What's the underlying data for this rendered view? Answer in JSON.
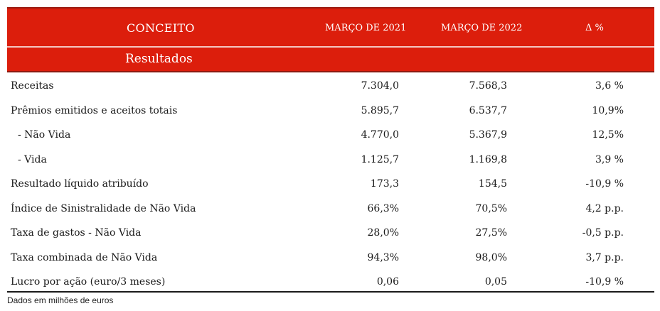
{
  "header": {
    "concept": "CONCEITO",
    "col_2021": "MARÇO DE 2021",
    "col_2022": "MARÇO DE 2022",
    "col_delta": "Δ %"
  },
  "section": {
    "title": "Resultados"
  },
  "rows": [
    {
      "label": "Receitas",
      "v2021": "7.304,0",
      "v2022": "7.568,3",
      "delta": "3,6 %"
    },
    {
      "label": "Prêmios emitidos e aceitos totais",
      "v2021": "5.895,7",
      "v2022": "6.537,7",
      "delta": "10,9%"
    },
    {
      "label": "- Não Vida",
      "v2021": "4.770,0",
      "v2022": "5.367,9",
      "delta": "12,5%"
    },
    {
      "label": "- Vida",
      "v2021": "1.125,7",
      "v2022": "1.169,8",
      "delta": "3,9 %"
    },
    {
      "label": "Resultado líquido atribuído",
      "v2021": "173,3",
      "v2022": "154,5",
      "delta": "-10,9 %"
    },
    {
      "label": "Índice de Sinistralidade de Não Vida",
      "v2021": "66,3%",
      "v2022": "70,5%",
      "delta": "4,2 p.p."
    },
    {
      "label": "Taxa de gastos - Não Vida",
      "v2021": "28,0%",
      "v2022": "27,5%",
      "delta": "-0,5 p.p."
    },
    {
      "label": "Taxa combinada de Não Vida",
      "v2021": "94,3%",
      "v2022": "98,0%",
      "delta": "3,7 p.p."
    },
    {
      "label": "Lucro por ação (euro/3 meses)",
      "v2021": "0,06",
      "v2022": "0,05",
      "delta": "-10,9 %"
    }
  ],
  "footnote": "Dados em milhões de euros",
  "colors": {
    "header_red": "#dc1e0c"
  }
}
